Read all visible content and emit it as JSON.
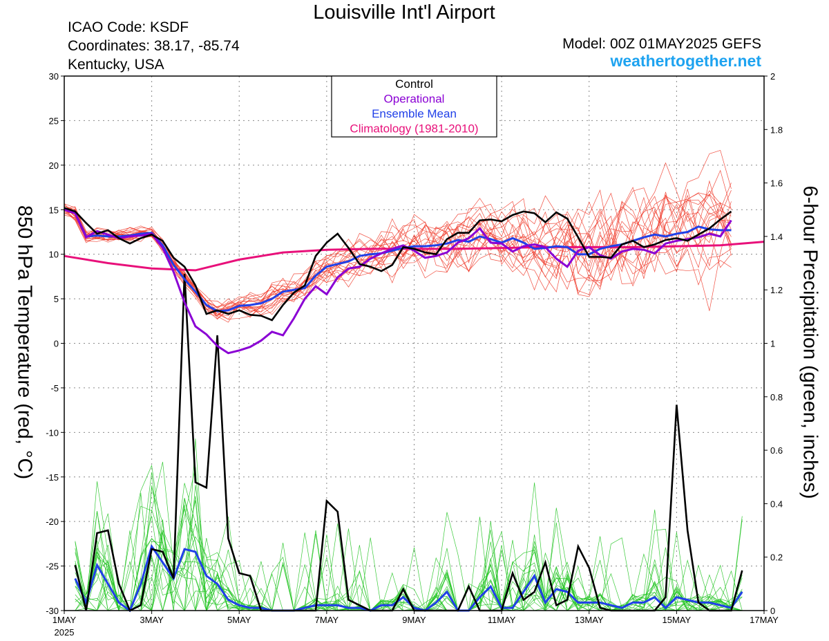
{
  "header": {
    "title": "Louisville Int'l Airport",
    "icao": "ICAO Code: KSDF",
    "coords": "Coordinates: 38.17, -85.74",
    "region": "Kentucky, USA",
    "model": "Model: 00Z 01MAY2025 GEFS",
    "website": "weathertogether.net"
  },
  "chart_data": {
    "type": "line",
    "title": "Louisville Int'l Airport",
    "ylabel": "850 hPa Temperature (red, °C)",
    "y2label": "6-hour Precipitation (green, inches)",
    "xlim": [
      0,
      16
    ],
    "ylim": [
      -30,
      30
    ],
    "y2lim": [
      0,
      2
    ],
    "y_ticks": [
      "30",
      "25",
      "20",
      "15",
      "10",
      "5",
      "0",
      "-5",
      "-10",
      "-15",
      "-20",
      "-25",
      "-30"
    ],
    "y2_ticks": [
      "2",
      "1.8",
      "1.6",
      "1.4",
      "1.2",
      "1",
      "0.8",
      "0.6",
      "0.4",
      "0.2",
      "0"
    ],
    "x_ticks": [
      {
        "day": 0,
        "label": "1MAY",
        "sub": "2025"
      },
      {
        "day": 2,
        "label": "3MAY"
      },
      {
        "day": 4,
        "label": "5MAY"
      },
      {
        "day": 6,
        "label": "7MAY"
      },
      {
        "day": 8,
        "label": "9MAY"
      },
      {
        "day": 10,
        "label": "11MAY"
      },
      {
        "day": 12,
        "label": "13MAY"
      },
      {
        "day": 14,
        "label": "15MAY"
      },
      {
        "day": 16,
        "label": "17MAY"
      }
    ],
    "grid": true,
    "legend_position": "top-center",
    "legend": [
      {
        "label": "Control",
        "color": "#000000"
      },
      {
        "label": "Operational",
        "color": "#8a00d4"
      },
      {
        "label": "Ensemble Mean",
        "color": "#2040e8"
      },
      {
        "label": "Climatology (1981-2010)",
        "color": "#e8107a"
      }
    ],
    "temperature": {
      "climatology": [
        [
          0,
          9.8
        ],
        [
          1,
          9.0
        ],
        [
          2,
          8.4
        ],
        [
          3,
          8.2
        ],
        [
          4,
          9.4
        ],
        [
          5,
          10.2
        ],
        [
          6,
          10.5
        ],
        [
          7,
          10.6
        ],
        [
          8,
          10.6
        ],
        [
          9,
          10.6
        ],
        [
          10,
          10.7
        ],
        [
          11,
          10.8
        ],
        [
          12,
          10.8
        ],
        [
          13,
          10.8
        ],
        [
          14,
          10.9
        ],
        [
          15,
          11.0
        ],
        [
          16,
          11.4
        ]
      ],
      "control": [
        [
          0,
          15.2
        ],
        [
          0.25,
          14.8
        ],
        [
          0.5,
          13.5
        ],
        [
          0.75,
          12.3
        ],
        [
          1,
          12.7
        ],
        [
          1.25,
          11.8
        ],
        [
          1.5,
          11.2
        ],
        [
          1.75,
          11.8
        ],
        [
          2,
          12.2
        ],
        [
          2.25,
          11.5
        ],
        [
          2.5,
          9.6
        ],
        [
          2.75,
          8.6
        ],
        [
          3,
          6.5
        ],
        [
          3.25,
          3.3
        ],
        [
          3.5,
          3.7
        ],
        [
          3.75,
          3.3
        ],
        [
          4,
          3.7
        ],
        [
          4.25,
          3.2
        ],
        [
          4.5,
          3.1
        ],
        [
          4.75,
          2.6
        ],
        [
          5,
          4.3
        ],
        [
          5.25,
          5.7
        ],
        [
          5.5,
          6.5
        ],
        [
          5.75,
          9.8
        ],
        [
          6,
          11.3
        ],
        [
          6.25,
          12.3
        ],
        [
          6.5,
          10.7
        ],
        [
          6.75,
          8.9
        ],
        [
          7,
          8.6
        ],
        [
          7.25,
          8.1
        ],
        [
          7.5,
          8.8
        ],
        [
          7.75,
          10.8
        ],
        [
          8,
          10.6
        ],
        [
          8.25,
          10.2
        ],
        [
          8.5,
          10.0
        ],
        [
          8.75,
          11.7
        ],
        [
          9,
          12.4
        ],
        [
          9.25,
          12.4
        ],
        [
          9.5,
          13.8
        ],
        [
          9.75,
          13.9
        ],
        [
          10,
          13.7
        ],
        [
          10.25,
          14.4
        ],
        [
          10.5,
          14.8
        ],
        [
          10.75,
          14.6
        ],
        [
          11,
          13.6
        ],
        [
          11.25,
          14.7
        ],
        [
          11.5,
          14.0
        ],
        [
          11.75,
          11.9
        ],
        [
          12,
          9.7
        ],
        [
          12.25,
          9.7
        ],
        [
          12.5,
          9.6
        ],
        [
          12.75,
          11.1
        ],
        [
          13,
          11.5
        ],
        [
          13.25,
          10.8
        ],
        [
          13.5,
          11.1
        ],
        [
          13.75,
          11.6
        ],
        [
          14,
          11.8
        ],
        [
          14.25,
          11.5
        ],
        [
          14.5,
          12.2
        ],
        [
          14.75,
          12.9
        ],
        [
          15,
          13.9
        ],
        [
          15.25,
          14.8
        ]
      ],
      "operational": [
        [
          0,
          15.0
        ],
        [
          0.25,
          14.6
        ],
        [
          0.5,
          11.9
        ],
        [
          0.75,
          12.6
        ],
        [
          1,
          12.2
        ],
        [
          1.25,
          11.8
        ],
        [
          1.5,
          12.0
        ],
        [
          1.75,
          12.1
        ],
        [
          2,
          12.3
        ],
        [
          2.25,
          10.7
        ],
        [
          2.5,
          8.0
        ],
        [
          2.75,
          4.6
        ],
        [
          3,
          1.9
        ],
        [
          3.25,
          1.0
        ],
        [
          3.5,
          -0.3
        ],
        [
          3.75,
          -1.1
        ],
        [
          4,
          -0.8
        ],
        [
          4.25,
          -0.4
        ],
        [
          4.5,
          0.3
        ],
        [
          4.75,
          1.3
        ],
        [
          5,
          0.9
        ],
        [
          5.25,
          2.8
        ],
        [
          5.5,
          5.0
        ],
        [
          5.75,
          6.4
        ],
        [
          6,
          5.5
        ],
        [
          6.25,
          7.4
        ],
        [
          6.5,
          8.4
        ],
        [
          6.75,
          8.6
        ],
        [
          7,
          9.5
        ],
        [
          7.25,
          10.1
        ],
        [
          7.5,
          10.6
        ],
        [
          7.75,
          11.0
        ],
        [
          8,
          10.4
        ],
        [
          8.25,
          9.6
        ],
        [
          8.5,
          9.8
        ],
        [
          8.75,
          10.2
        ],
        [
          9,
          11.3
        ],
        [
          9.25,
          11.8
        ],
        [
          9.5,
          12.9
        ],
        [
          9.75,
          11.3
        ],
        [
          10,
          11.2
        ],
        [
          10.25,
          10.3
        ],
        [
          10.5,
          10.9
        ],
        [
          10.75,
          11.1
        ],
        [
          11,
          10.8
        ],
        [
          11.25,
          9.5
        ],
        [
          11.5,
          8.6
        ],
        [
          11.75,
          10.4
        ],
        [
          12,
          10.8
        ],
        [
          12.25,
          9.9
        ],
        [
          12.5,
          9.5
        ],
        [
          12.75,
          10.3
        ],
        [
          13,
          10.6
        ],
        [
          13.25,
          10.5
        ],
        [
          13.5,
          10.1
        ],
        [
          13.75,
          11.2
        ],
        [
          14,
          11.5
        ],
        [
          14.25,
          11.7
        ],
        [
          14.5,
          11.9
        ],
        [
          14.75,
          12.3
        ],
        [
          15,
          12.0
        ],
        [
          15.25,
          13.8
        ]
      ],
      "ensemble_mean": [
        [
          0,
          15.1
        ],
        [
          0.25,
          14.6
        ],
        [
          0.5,
          12.0
        ],
        [
          0.75,
          12.1
        ],
        [
          1,
          12.0
        ],
        [
          1.25,
          12.0
        ],
        [
          1.5,
          12.1
        ],
        [
          1.75,
          12.3
        ],
        [
          2,
          12.4
        ],
        [
          2.25,
          11.0
        ],
        [
          2.5,
          8.8
        ],
        [
          2.75,
          7.2
        ],
        [
          3,
          5.8
        ],
        [
          3.25,
          4.3
        ],
        [
          3.5,
          3.6
        ],
        [
          3.75,
          3.7
        ],
        [
          4,
          4.2
        ],
        [
          4.25,
          4.3
        ],
        [
          4.5,
          4.5
        ],
        [
          4.75,
          5.0
        ],
        [
          5,
          5.8
        ],
        [
          5.25,
          6.0
        ],
        [
          5.5,
          6.2
        ],
        [
          5.75,
          7.6
        ],
        [
          6,
          8.6
        ],
        [
          6.25,
          8.9
        ],
        [
          6.5,
          9.2
        ],
        [
          6.75,
          9.8
        ],
        [
          7,
          10.0
        ],
        [
          7.25,
          10.1
        ],
        [
          7.5,
          10.4
        ],
        [
          7.75,
          10.7
        ],
        [
          8,
          10.9
        ],
        [
          8.25,
          10.9
        ],
        [
          8.5,
          11.0
        ],
        [
          8.75,
          11.2
        ],
        [
          9,
          11.6
        ],
        [
          9.25,
          11.4
        ],
        [
          9.5,
          12.0
        ],
        [
          9.75,
          11.7
        ],
        [
          10,
          11.3
        ],
        [
          10.25,
          11.8
        ],
        [
          10.5,
          11.3
        ],
        [
          10.75,
          10.6
        ],
        [
          11,
          10.7
        ],
        [
          11.25,
          10.9
        ],
        [
          11.5,
          10.8
        ],
        [
          11.75,
          10.0
        ],
        [
          12,
          10.0
        ],
        [
          12.25,
          10.6
        ],
        [
          12.5,
          10.9
        ],
        [
          12.75,
          11.1
        ],
        [
          13,
          11.5
        ],
        [
          13.25,
          11.9
        ],
        [
          13.5,
          12.2
        ],
        [
          13.75,
          12.0
        ],
        [
          14,
          12.3
        ],
        [
          14.25,
          12.5
        ],
        [
          14.5,
          13.1
        ],
        [
          14.75,
          12.8
        ],
        [
          15,
          12.7
        ],
        [
          15.25,
          12.7
        ]
      ]
    },
    "precipitation": {
      "control": [
        [
          0.25,
          0.17
        ],
        [
          0.5,
          0.0
        ],
        [
          0.75,
          0.29
        ],
        [
          1,
          0.3
        ],
        [
          1.25,
          0.1
        ],
        [
          1.5,
          0.0
        ],
        [
          1.75,
          0.02
        ],
        [
          2,
          0.23
        ],
        [
          2.25,
          0.22
        ],
        [
          2.5,
          0.12
        ],
        [
          2.75,
          1.26
        ],
        [
          3,
          0.48
        ],
        [
          3.25,
          0.46
        ],
        [
          3.5,
          1.03
        ],
        [
          3.75,
          0.27
        ],
        [
          4,
          0.14
        ],
        [
          4.25,
          0.13
        ],
        [
          4.5,
          0.0
        ],
        [
          4.75,
          0.0
        ],
        [
          5,
          0.0
        ],
        [
          5.25,
          0.0
        ],
        [
          5.5,
          0.0
        ],
        [
          5.75,
          0.0
        ],
        [
          6,
          0.41
        ],
        [
          6.25,
          0.37
        ],
        [
          6.5,
          0.04
        ],
        [
          6.75,
          0.02
        ],
        [
          7,
          0.0
        ],
        [
          7.25,
          0.0
        ],
        [
          7.5,
          0.0
        ],
        [
          7.75,
          0.08
        ],
        [
          8,
          0.0
        ],
        [
          8.25,
          0.0
        ],
        [
          8.5,
          0.0
        ],
        [
          8.75,
          0.0
        ],
        [
          9,
          0.0
        ],
        [
          9.25,
          0.09
        ],
        [
          9.5,
          0.0
        ],
        [
          9.75,
          0.0
        ],
        [
          10,
          0.0
        ],
        [
          10.25,
          0.14
        ],
        [
          10.5,
          0.04
        ],
        [
          10.75,
          0.07
        ],
        [
          11,
          0.18
        ],
        [
          11.25,
          0.02
        ],
        [
          11.5,
          0.04
        ],
        [
          11.75,
          0.24
        ],
        [
          12,
          0.16
        ],
        [
          12.25,
          0.01
        ],
        [
          12.5,
          0.0
        ],
        [
          12.75,
          0.0
        ],
        [
          13,
          0.0
        ],
        [
          13.25,
          0.0
        ],
        [
          13.5,
          0.0
        ],
        [
          13.75,
          0.05
        ],
        [
          14,
          0.77
        ],
        [
          14.25,
          0.3
        ],
        [
          14.5,
          0.03
        ],
        [
          14.75,
          0.0
        ],
        [
          15,
          0.0
        ],
        [
          15.25,
          0.0
        ],
        [
          15.5,
          0.15
        ]
      ],
      "ensemble_mean": [
        [
          0.25,
          0.12
        ],
        [
          0.5,
          0.03
        ],
        [
          0.75,
          0.17
        ],
        [
          1,
          0.1
        ],
        [
          1.25,
          0.03
        ],
        [
          1.5,
          0.0
        ],
        [
          1.75,
          0.1
        ],
        [
          2,
          0.24
        ],
        [
          2.25,
          0.18
        ],
        [
          2.5,
          0.12
        ],
        [
          2.75,
          0.23
        ],
        [
          3,
          0.22
        ],
        [
          3.25,
          0.13
        ],
        [
          3.5,
          0.1
        ],
        [
          3.75,
          0.04
        ],
        [
          4,
          0.02
        ],
        [
          4.25,
          0.01
        ],
        [
          4.5,
          0.01
        ],
        [
          4.75,
          0.0
        ],
        [
          5,
          0.0
        ],
        [
          5.25,
          0.0
        ],
        [
          5.5,
          0.01
        ],
        [
          5.75,
          0.02
        ],
        [
          6,
          0.02
        ],
        [
          6.25,
          0.02
        ],
        [
          6.5,
          0.01
        ],
        [
          6.75,
          0.01
        ],
        [
          7,
          0.0
        ],
        [
          7.25,
          0.02
        ],
        [
          7.5,
          0.02
        ],
        [
          7.75,
          0.05
        ],
        [
          8,
          0.01
        ],
        [
          8.25,
          0.0
        ],
        [
          8.5,
          0.03
        ],
        [
          8.75,
          0.07
        ],
        [
          9,
          0.0
        ],
        [
          9.25,
          0.0
        ],
        [
          9.5,
          0.05
        ],
        [
          9.75,
          0.09
        ],
        [
          10,
          0.01
        ],
        [
          10.25,
          0.01
        ],
        [
          10.5,
          0.07
        ],
        [
          10.75,
          0.13
        ],
        [
          11,
          0.03
        ],
        [
          11.25,
          0.08
        ],
        [
          11.5,
          0.07
        ],
        [
          11.75,
          0.03
        ],
        [
          12,
          0.03
        ],
        [
          12.25,
          0.03
        ],
        [
          12.5,
          0.02
        ],
        [
          12.75,
          0.01
        ],
        [
          13,
          0.03
        ],
        [
          13.25,
          0.03
        ],
        [
          13.5,
          0.05
        ],
        [
          13.75,
          0.01
        ],
        [
          14,
          0.05
        ],
        [
          14.25,
          0.04
        ],
        [
          14.5,
          0.03
        ],
        [
          14.75,
          0.03
        ],
        [
          15,
          0.02
        ],
        [
          15.25,
          0.01
        ],
        [
          15.5,
          0.07
        ]
      ]
    }
  }
}
